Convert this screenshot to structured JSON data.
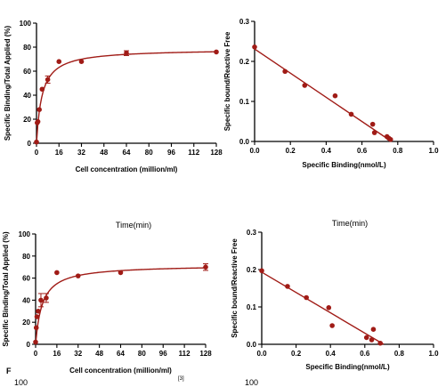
{
  "panel_letters": [
    "F"
  ],
  "crop_fragments": [
    "Time(min)",
    "Time(min)",
    "100",
    "[3]",
    "100"
  ],
  "colors": {
    "series": "#a01b16",
    "axis": "#000000"
  },
  "chart_data": [
    {
      "type": "scatter",
      "title": "",
      "xlabel": "Cell concentration (million/ml)",
      "ylabel": "Specific Binding/Total Applied (%)",
      "xlim": [
        0,
        128
      ],
      "ylim": [
        0,
        100
      ],
      "xticks": [
        0,
        16,
        32,
        48,
        64,
        80,
        96,
        112,
        128
      ],
      "yticks": [
        0,
        20,
        40,
        60,
        80,
        100
      ],
      "x": [
        0,
        0.5,
        1,
        2,
        4,
        8,
        16,
        32,
        64,
        128
      ],
      "y": [
        1,
        17,
        18,
        28,
        45,
        53,
        68,
        68,
        75,
        76
      ],
      "error": [
        0,
        0,
        0,
        0,
        0,
        3,
        0,
        0,
        2,
        0
      ],
      "fit": {
        "model": "one-site saturation",
        "bmax": 78.5,
        "kd": 3.9
      }
    },
    {
      "type": "scatter",
      "title": "",
      "xlabel": "Specific Binding(nmol/L)",
      "ylabel": "Specific bound/Reactive Free",
      "xlim": [
        0,
        1
      ],
      "ylim": [
        0,
        0.3
      ],
      "xticks": [
        "0.0",
        "0.2",
        "0.4",
        "0.6",
        "0.8",
        "1.0"
      ],
      "yticks": [
        "0.0",
        "0.1",
        "0.2",
        "0.3"
      ],
      "x": [
        0,
        0.17,
        0.28,
        0.45,
        0.54,
        0.66,
        0.67,
        0.74,
        0.75,
        0.76
      ],
      "y": [
        0.236,
        0.175,
        0.14,
        0.114,
        0.068,
        0.043,
        0.022,
        0.012,
        0.008,
        0.005
      ],
      "fit": {
        "model": "linear",
        "x": [
          0,
          0.765
        ],
        "y": [
          0.231,
          0
        ]
      }
    },
    {
      "type": "scatter",
      "title": "",
      "xlabel": "Cell concentration (million/ml)",
      "ylabel": "Specific Binding/Total Applied (%)",
      "xlim": [
        0,
        128
      ],
      "ylim": [
        0,
        100
      ],
      "xticks": [
        0,
        16,
        32,
        48,
        64,
        80,
        96,
        112,
        128
      ],
      "yticks": [
        0,
        20,
        40,
        60,
        80,
        100
      ],
      "x": [
        0,
        0.5,
        1,
        2,
        4,
        8,
        16,
        32,
        64,
        128
      ],
      "y": [
        2,
        15,
        25,
        30,
        40,
        42,
        65,
        62,
        65,
        70
      ],
      "error": [
        0,
        0,
        0,
        0,
        6,
        4,
        0,
        0,
        0,
        3
      ],
      "fit": {
        "model": "one-site saturation",
        "bmax": 72,
        "kd": 5
      }
    },
    {
      "type": "scatter",
      "title": "",
      "xlabel": "Specific Binding(nmol/L)",
      "ylabel": "Specific bound/Reactive Free",
      "xlim": [
        0,
        1
      ],
      "ylim": [
        0,
        0.3
      ],
      "xticks": [
        "0.0",
        "0.2",
        "0.4",
        "0.6",
        "0.8",
        "1.0"
      ],
      "yticks": [
        "0.0",
        "0.1",
        "0.2",
        "0.3"
      ],
      "x": [
        0,
        0.15,
        0.26,
        0.39,
        0.41,
        0.61,
        0.64,
        0.65,
        0.69
      ],
      "y": [
        0.197,
        0.155,
        0.125,
        0.098,
        0.05,
        0.018,
        0.012,
        0.04,
        0.003
      ],
      "fit": {
        "model": "linear",
        "x": [
          0,
          0.71
        ],
        "y": [
          0.193,
          0
        ]
      }
    }
  ]
}
